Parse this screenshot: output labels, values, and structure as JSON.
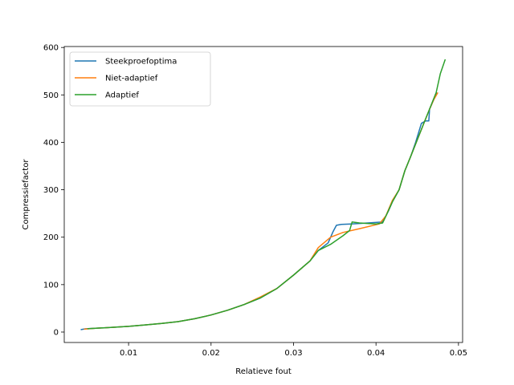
{
  "chart_data": {
    "type": "line",
    "title": "",
    "xlabel": "Relatieve fout",
    "ylabel": "Compressiefactor",
    "xlim": [
      0.0022,
      0.0505
    ],
    "ylim": [
      -22,
      602
    ],
    "x_ticks": [
      0.01,
      0.02,
      0.03,
      0.04,
      0.05
    ],
    "x_tick_labels": [
      "0.01",
      "0.02",
      "0.03",
      "0.04",
      "0.05"
    ],
    "y_ticks": [
      0,
      100,
      200,
      300,
      400,
      500,
      600
    ],
    "y_tick_labels": [
      "0",
      "100",
      "200",
      "300",
      "400",
      "500",
      "600"
    ],
    "grid": false,
    "legend_position": "top-left",
    "series": [
      {
        "name": "Steekproefoptima",
        "color": "#1f77b4",
        "points": [
          [
            0.0042,
            5
          ],
          [
            0.0048,
            7
          ],
          [
            0.006,
            8
          ],
          [
            0.008,
            10
          ],
          [
            0.01,
            12
          ],
          [
            0.012,
            15
          ],
          [
            0.014,
            18
          ],
          [
            0.016,
            22
          ],
          [
            0.018,
            28
          ],
          [
            0.02,
            36
          ],
          [
            0.022,
            46
          ],
          [
            0.024,
            58
          ],
          [
            0.026,
            72
          ],
          [
            0.028,
            92
          ],
          [
            0.03,
            120
          ],
          [
            0.032,
            150
          ],
          [
            0.033,
            172
          ],
          [
            0.0342,
            188
          ],
          [
            0.0348,
            212
          ],
          [
            0.0352,
            225
          ],
          [
            0.0358,
            227
          ],
          [
            0.037,
            228
          ],
          [
            0.039,
            230
          ],
          [
            0.0408,
            232
          ],
          [
            0.0415,
            255
          ],
          [
            0.042,
            275
          ],
          [
            0.0428,
            300
          ],
          [
            0.0435,
            340
          ],
          [
            0.0442,
            370
          ],
          [
            0.0448,
            400
          ],
          [
            0.0455,
            440
          ],
          [
            0.046,
            445
          ],
          [
            0.0464,
            445
          ],
          [
            0.0465,
            470
          ],
          [
            0.047,
            490
          ],
          [
            0.0474,
            505
          ]
        ]
      },
      {
        "name": "Niet-adaptief",
        "color": "#ff7f0e",
        "points": [
          [
            0.0046,
            6
          ],
          [
            0.006,
            8
          ],
          [
            0.008,
            10
          ],
          [
            0.01,
            12
          ],
          [
            0.012,
            15
          ],
          [
            0.014,
            18
          ],
          [
            0.016,
            22
          ],
          [
            0.018,
            28
          ],
          [
            0.02,
            36
          ],
          [
            0.022,
            46
          ],
          [
            0.024,
            58
          ],
          [
            0.026,
            74
          ],
          [
            0.028,
            92
          ],
          [
            0.03,
            120
          ],
          [
            0.032,
            150
          ],
          [
            0.033,
            178
          ],
          [
            0.0345,
            200
          ],
          [
            0.036,
            210
          ],
          [
            0.038,
            218
          ],
          [
            0.0404,
            228
          ],
          [
            0.0412,
            245
          ],
          [
            0.042,
            278
          ],
          [
            0.0428,
            300
          ],
          [
            0.0435,
            340
          ],
          [
            0.0442,
            370
          ],
          [
            0.045,
            405
          ],
          [
            0.0458,
            440
          ],
          [
            0.0465,
            470
          ],
          [
            0.047,
            490
          ],
          [
            0.0475,
            505
          ]
        ]
      },
      {
        "name": "Adaptief",
        "color": "#2ca02c",
        "points": [
          [
            0.005,
            7
          ],
          [
            0.006,
            8
          ],
          [
            0.008,
            10
          ],
          [
            0.01,
            12
          ],
          [
            0.012,
            15
          ],
          [
            0.014,
            18
          ],
          [
            0.016,
            22
          ],
          [
            0.018,
            28
          ],
          [
            0.02,
            36
          ],
          [
            0.022,
            46
          ],
          [
            0.024,
            58
          ],
          [
            0.026,
            72
          ],
          [
            0.028,
            92
          ],
          [
            0.03,
            120
          ],
          [
            0.032,
            150
          ],
          [
            0.033,
            172
          ],
          [
            0.0345,
            185
          ],
          [
            0.036,
            203
          ],
          [
            0.0368,
            214
          ],
          [
            0.0371,
            232
          ],
          [
            0.038,
            230
          ],
          [
            0.039,
            229
          ],
          [
            0.04,
            228
          ],
          [
            0.0408,
            230
          ],
          [
            0.0413,
            248
          ],
          [
            0.042,
            275
          ],
          [
            0.0428,
            300
          ],
          [
            0.0435,
            340
          ],
          [
            0.0442,
            370
          ],
          [
            0.045,
            405
          ],
          [
            0.0458,
            440
          ],
          [
            0.0466,
            475
          ],
          [
            0.0473,
            505
          ],
          [
            0.0478,
            545
          ],
          [
            0.0484,
            575
          ]
        ]
      }
    ]
  }
}
